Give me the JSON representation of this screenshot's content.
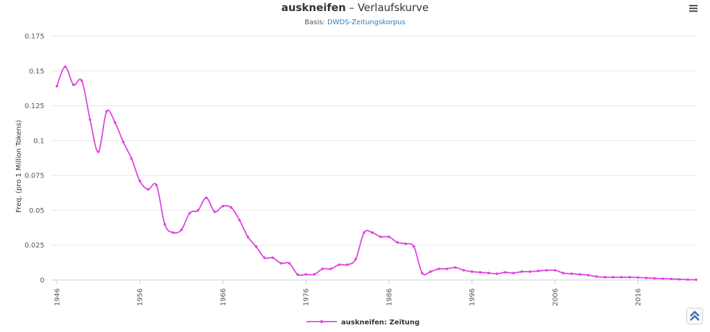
{
  "header": {
    "word": "auskneifen",
    "title_rest": " – Verlaufskurve",
    "subtitle_prefix": "Basis: ",
    "subtitle_link": "DWDS-Zeitungskorpus"
  },
  "icons": {
    "menu": "hamburger-menu-icon",
    "scroll_top": "double-chevron-up-icon"
  },
  "colors": {
    "series": "#e040e0",
    "grid": "#e6e6e6",
    "axis": "#c0d0e0"
  },
  "chart_data": {
    "type": "line",
    "ylabel": "Freq. (pro 1 Million Tokens)",
    "xlabel": "",
    "xlim": [
      1946,
      2023
    ],
    "ylim": [
      0,
      0.175
    ],
    "yticks": [
      0,
      0.025,
      0.05,
      0.075,
      0.1,
      0.125,
      0.15,
      0.175
    ],
    "ytick_labels": [
      "0",
      "0.025",
      "0.05",
      "0.075",
      "0.1",
      "0.125",
      "0.15",
      "0.175"
    ],
    "xticks": [
      1946,
      1956,
      1966,
      1976,
      1986,
      1996,
      2006,
      2016
    ],
    "grid": true,
    "legend_position": "bottom-center",
    "series": [
      {
        "name": "auskneifen: Zeitung",
        "color": "#e040e0",
        "x": [
          1946,
          1947,
          1948,
          1949,
          1950,
          1951,
          1952,
          1953,
          1954,
          1955,
          1956,
          1957,
          1958,
          1959,
          1960,
          1961,
          1962,
          1963,
          1964,
          1965,
          1966,
          1967,
          1968,
          1969,
          1970,
          1971,
          1972,
          1973,
          1974,
          1975,
          1976,
          1977,
          1978,
          1979,
          1980,
          1981,
          1982,
          1983,
          1984,
          1985,
          1986,
          1987,
          1988,
          1989,
          1990,
          1991,
          1992,
          1993,
          1994,
          1995,
          1996,
          1997,
          1998,
          1999,
          2000,
          2001,
          2002,
          2003,
          2004,
          2005,
          2006,
          2007,
          2008,
          2009,
          2010,
          2011,
          2012,
          2013,
          2014,
          2015,
          2016,
          2017,
          2018,
          2019,
          2020,
          2021,
          2022,
          2023
        ],
        "values": [
          0.139,
          0.153,
          0.14,
          0.143,
          0.115,
          0.092,
          0.121,
          0.113,
          0.099,
          0.087,
          0.071,
          0.065,
          0.068,
          0.04,
          0.034,
          0.036,
          0.048,
          0.05,
          0.059,
          0.049,
          0.053,
          0.052,
          0.043,
          0.031,
          0.024,
          0.016,
          0.016,
          0.012,
          0.012,
          0.004,
          0.004,
          0.004,
          0.008,
          0.008,
          0.011,
          0.011,
          0.015,
          0.034,
          0.034,
          0.031,
          0.031,
          0.027,
          0.026,
          0.024,
          0.005,
          0.006,
          0.008,
          0.008,
          0.009,
          0.007,
          0.006,
          0.0055,
          0.005,
          0.0045,
          0.0055,
          0.005,
          0.006,
          0.006,
          0.0065,
          0.007,
          0.007,
          0.005,
          0.0045,
          0.004,
          0.0035,
          0.0025,
          0.002,
          0.002,
          0.002,
          0.002,
          0.0018,
          0.0015,
          0.0012,
          0.001,
          0.0008,
          0.0005,
          0.0003,
          0.0002
        ]
      }
    ]
  }
}
